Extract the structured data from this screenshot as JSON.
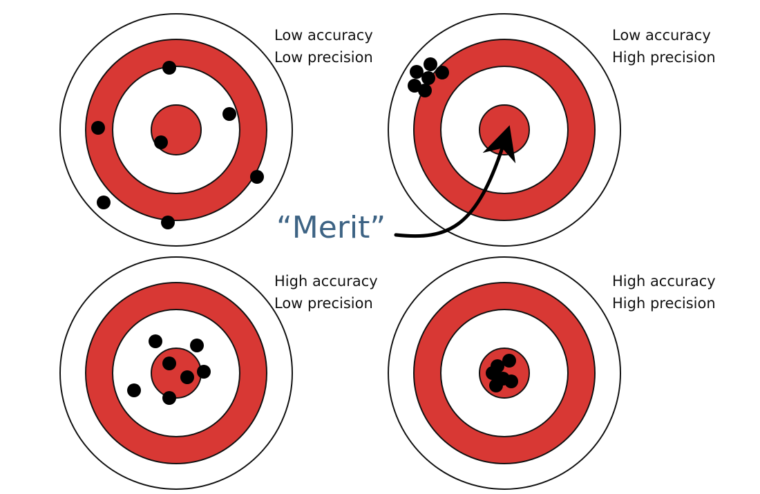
{
  "colors": {
    "ring_red": "#d83834",
    "outline": "#111111",
    "hit": "#000000",
    "merit_text": "#3d6384",
    "background": "#ffffff"
  },
  "targets": [
    {
      "id": "low-accuracy-low-precision",
      "caption_line1": "Low accuracy",
      "caption_line2": "Low precision"
    },
    {
      "id": "low-accuracy-high-precision",
      "caption_line1": "Low accuracy",
      "caption_line2": "High precision"
    },
    {
      "id": "high-accuracy-low-precision",
      "caption_line1": "High accuracy",
      "caption_line2": "Low precision"
    },
    {
      "id": "high-accuracy-high-precision",
      "caption_line1": "High accuracy",
      "caption_line2": "High precision"
    }
  ],
  "annotation": {
    "label": "“Merit”"
  }
}
